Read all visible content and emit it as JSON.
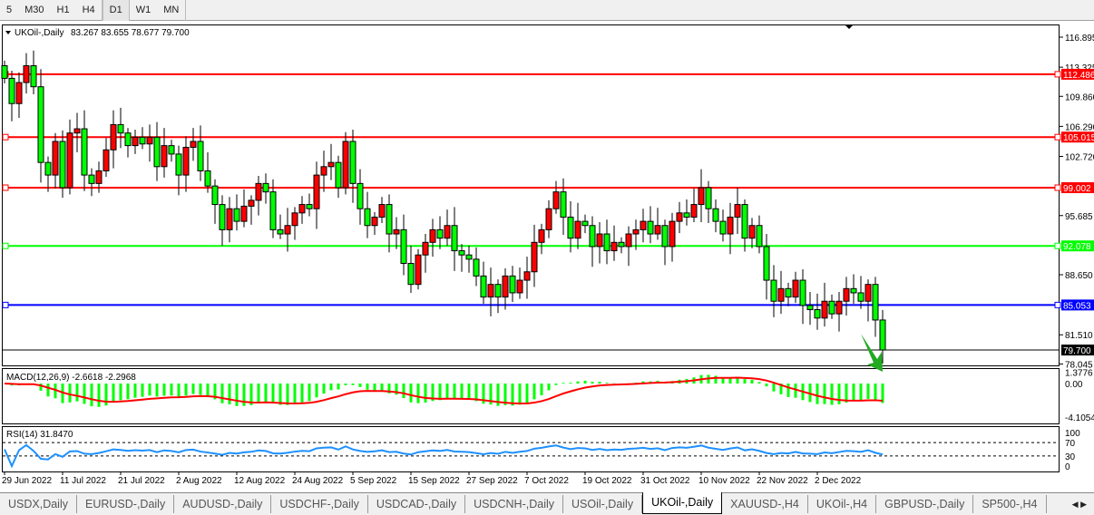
{
  "toolbar": {
    "timeframes": [
      {
        "label": "5"
      },
      {
        "label": "M30"
      },
      {
        "label": "H1"
      },
      {
        "label": "H4"
      },
      {
        "label": "D1",
        "active": true
      },
      {
        "label": "W1"
      },
      {
        "label": "MN"
      }
    ]
  },
  "chart": {
    "symbol_label": "UKOil-,Daily",
    "ohlc_label": "83.267 83.655 78.677 79.700",
    "price_ticks": [
      "116.895",
      "113.325",
      "109.860",
      "106.290",
      "102.720",
      "95.685",
      "88.650",
      "81.510",
      "78.045"
    ],
    "levels": [
      {
        "value": 112.486,
        "label": "112.486",
        "color": "#ff0000"
      },
      {
        "value": 105.015,
        "label": "105.015",
        "color": "#ff0000"
      },
      {
        "value": 99.002,
        "label": "99.002",
        "color": "#ff0000"
      },
      {
        "value": 92.078,
        "label": "92.078",
        "color": "#00ff00"
      },
      {
        "value": 85.053,
        "label": "85.053",
        "color": "#0000ff"
      }
    ],
    "current_price": {
      "value": 79.7,
      "label": "79.700"
    },
    "bear_color": "#00ff00",
    "bull_color": "#ff0000",
    "closes": [
      112.0,
      109.0,
      111.5,
      113.5,
      111.0,
      102.0,
      100.5,
      104.5,
      99.0,
      105.5,
      106.0,
      100.5,
      99.5,
      101.0,
      103.5,
      106.5,
      105.5,
      104.0,
      105.0,
      104.2,
      105.0,
      101.5,
      104.0,
      103.0,
      100.5,
      103.8,
      104.5,
      101.0,
      99.2,
      97.0,
      94.0,
      96.5,
      95.0,
      96.8,
      97.5,
      99.5,
      98.5,
      94.0,
      93.5,
      94.5,
      96.0,
      97.0,
      96.5,
      100.5,
      101.5,
      102.0,
      99.0,
      104.5,
      99.5,
      96.5,
      94.5,
      95.5,
      97.0,
      93.5,
      94.0,
      90.0,
      87.5,
      91.0,
      92.5,
      94.0,
      93.0,
      94.5,
      91.5,
      91.0,
      90.5,
      88.5,
      86.0,
      87.5,
      86.0,
      88.5,
      86.5,
      88.0,
      89.0,
      92.5,
      94.0,
      96.5,
      98.5,
      95.5,
      93.0,
      95.0,
      94.5,
      92.0,
      93.5,
      91.5,
      92.5,
      92.0,
      93.5,
      94.0,
      95.0,
      93.5,
      94.5,
      92.0,
      95.0,
      96.0,
      95.5,
      97.0,
      99.0,
      96.5,
      95.0,
      93.5,
      95.5,
      97.0,
      93.0,
      94.5,
      92.0,
      88.0,
      85.5,
      87.0,
      86.0,
      88.0,
      85.0,
      84.5,
      83.5,
      85.5,
      84.0,
      85.5,
      87.0,
      86.5,
      85.5,
      87.5,
      83.267,
      79.7
    ],
    "dates": [
      "29 Jun 2022",
      "11 Jul 2022",
      "21 Jul 2022",
      "2 Aug 2022",
      "12 Aug 2022",
      "24 Aug 2022",
      "5 Sep 2022",
      "15 Sep 2022",
      "27 Sep 2022",
      "7 Oct 2022",
      "19 Oct 2022",
      "31 Oct 2022",
      "10 Nov 2022",
      "22 Nov 2022",
      "2 Dec 2022"
    ]
  },
  "macd": {
    "label": "MACD(12,26,9) -2.6618 -2.2968",
    "ticks": [
      "1.3776",
      "0.00",
      "-4.1054"
    ],
    "hist_color": "#00ff00",
    "signal_color": "#ff0000"
  },
  "rsi": {
    "label": "RSI(14) 31.8470",
    "ticks": [
      "100",
      "70",
      "30",
      "0"
    ],
    "color": "#1e90ff"
  },
  "arrow_color": "#22aa22",
  "tabs": [
    {
      "label": "USDX,Daily"
    },
    {
      "label": "EURUSD-,Daily"
    },
    {
      "label": "AUDUSD-,Daily"
    },
    {
      "label": "USDCHF-,Daily"
    },
    {
      "label": "USDCAD-,Daily"
    },
    {
      "label": "USDCNH-,Daily"
    },
    {
      "label": "USOil-,Daily"
    },
    {
      "label": "UKOil-,Daily",
      "active": true
    },
    {
      "label": "XAUUSD-,H4"
    },
    {
      "label": "UKOil-,H4"
    },
    {
      "label": "GBPUSD-,Daily"
    },
    {
      "label": "SP500-,H4"
    }
  ]
}
